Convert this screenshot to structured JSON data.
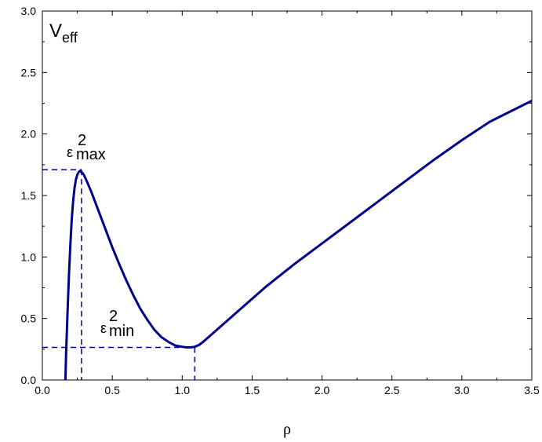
{
  "chart_data": {
    "type": "line",
    "xlabel": "ρ",
    "ylabel": "",
    "xlim": [
      0.0,
      3.5
    ],
    "ylim": [
      0.0,
      3.0
    ],
    "xticks": [
      "0.0",
      "0.5",
      "1.0",
      "1.5",
      "2.0",
      "2.5",
      "3.0",
      "3.5"
    ],
    "yticks": [
      "0.0",
      "0.5",
      "1.0",
      "1.5",
      "2.0",
      "2.5",
      "3.0"
    ],
    "grid": false,
    "line_color": "#00008B",
    "series": [
      {
        "x": [
          0.165,
          0.17,
          0.18,
          0.19,
          0.2,
          0.21,
          0.22,
          0.23,
          0.24,
          0.25,
          0.26,
          0.27,
          0.28,
          0.29,
          0.3,
          0.32,
          0.35,
          0.4,
          0.45,
          0.5,
          0.55,
          0.6,
          0.65,
          0.7,
          0.75,
          0.8,
          0.85,
          0.9,
          0.95,
          1.0,
          1.03,
          1.06,
          1.09,
          1.12,
          1.15,
          1.2,
          1.3,
          1.4,
          1.5,
          1.6,
          1.8,
          2.0,
          2.2,
          2.4,
          2.6,
          2.8,
          3.0,
          3.2,
          3.5
        ],
        "y": [
          0.0,
          0.22,
          0.55,
          0.85,
          1.1,
          1.3,
          1.45,
          1.56,
          1.63,
          1.67,
          1.69,
          1.7,
          1.69,
          1.68,
          1.66,
          1.61,
          1.53,
          1.38,
          1.23,
          1.08,
          0.94,
          0.81,
          0.69,
          0.58,
          0.49,
          0.41,
          0.35,
          0.31,
          0.28,
          0.27,
          0.265,
          0.265,
          0.27,
          0.285,
          0.31,
          0.36,
          0.46,
          0.56,
          0.66,
          0.76,
          0.94,
          1.11,
          1.28,
          1.45,
          1.62,
          1.79,
          1.95,
          2.1,
          2.27
        ]
      }
    ],
    "annotations": {
      "max_point": {
        "x": 0.28,
        "y": 1.71
      },
      "min_point": {
        "x": 1.09,
        "y": 0.265
      }
    },
    "labels": {
      "veff_main": "V",
      "veff_sub": "eff",
      "eps_max_base": "ε",
      "eps_max_sup": "2",
      "eps_max_sub": "max",
      "eps_min_base": "ε",
      "eps_min_sup": "2",
      "eps_min_sub": "min"
    }
  }
}
